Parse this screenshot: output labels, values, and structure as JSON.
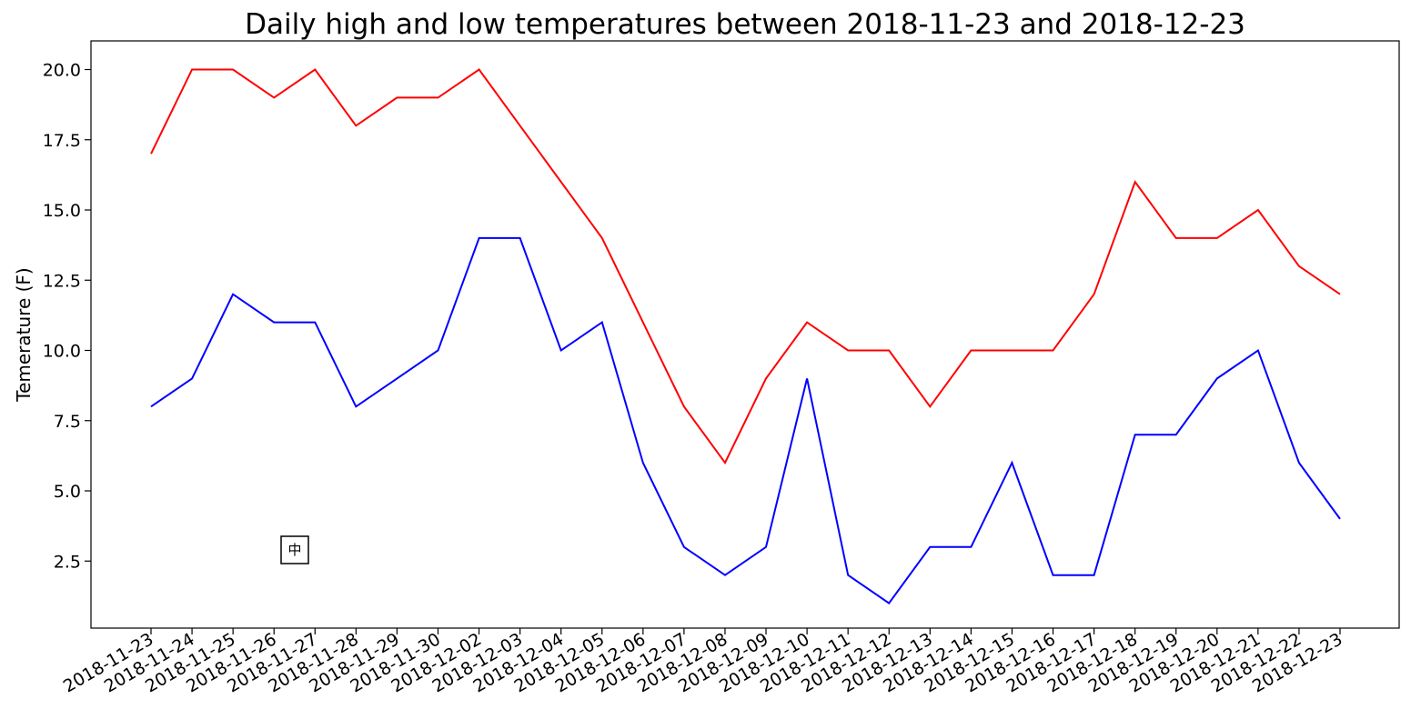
{
  "chart_data": {
    "type": "line",
    "title": "Daily high and low temperatures between 2018-11-23 and 2018-12-23",
    "xlabel": "",
    "ylabel": "Temerature (F)",
    "categories": [
      "2018-11-23",
      "2018-11-24",
      "2018-11-25",
      "2018-11-26",
      "2018-11-27",
      "2018-11-28",
      "2018-11-29",
      "2018-11-30",
      "2018-12-02",
      "2018-12-03",
      "2018-12-04",
      "2018-12-05",
      "2018-12-06",
      "2018-12-07",
      "2018-12-08",
      "2018-12-09",
      "2018-12-10",
      "2018-12-11",
      "2018-12-12",
      "2018-12-13",
      "2018-12-14",
      "2018-12-15",
      "2018-12-16",
      "2018-12-17",
      "2018-12-18",
      "2018-12-19",
      "2018-12-20",
      "2018-12-21",
      "2018-12-22",
      "2018-12-23"
    ],
    "yticks": [
      "2.5",
      "5.0",
      "7.5",
      "10.0",
      "12.5",
      "15.0",
      "17.5",
      "20.0"
    ],
    "ylim": [
      0,
      21
    ],
    "grid": false,
    "legend": {
      "placement": "lower-left",
      "symbol": "中"
    },
    "series": [
      {
        "color": "#ff0000",
        "values": [
          17,
          20,
          20,
          19,
          20,
          18,
          19,
          19,
          20,
          18,
          16,
          14,
          11,
          8,
          6,
          9,
          11,
          10,
          10,
          8,
          10,
          10,
          10,
          12,
          16,
          14,
          14,
          15,
          13,
          12
        ]
      },
      {
        "color": "#0000ff",
        "values": [
          8,
          9,
          12,
          11,
          11,
          8,
          9,
          10,
          14,
          14,
          10,
          11,
          6,
          3,
          2,
          3,
          9,
          2,
          1,
          3,
          3,
          6,
          2,
          2,
          7,
          7,
          9,
          10,
          6,
          4
        ]
      }
    ]
  }
}
